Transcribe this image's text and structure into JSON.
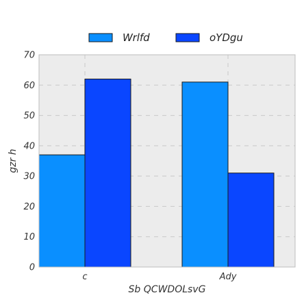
{
  "chart_data": {
    "type": "bar",
    "categories": [
      "c",
      "Ady"
    ],
    "series": [
      {
        "name": "Wrlfd",
        "values": [
          37,
          61
        ],
        "color": "#0a8fff"
      },
      {
        "name": "oYDgu",
        "values": [
          62,
          31
        ],
        "color": "#0a46ff"
      }
    ],
    "title": "",
    "xlabel": "Sb QCWDOLsvG",
    "ylabel": "gzr h",
    "ylim": [
      0,
      70
    ],
    "yticks": [
      0,
      10,
      20,
      30,
      40,
      50,
      60,
      70
    ],
    "grid": true,
    "legend_position": "top-center",
    "background": "#ececec"
  }
}
